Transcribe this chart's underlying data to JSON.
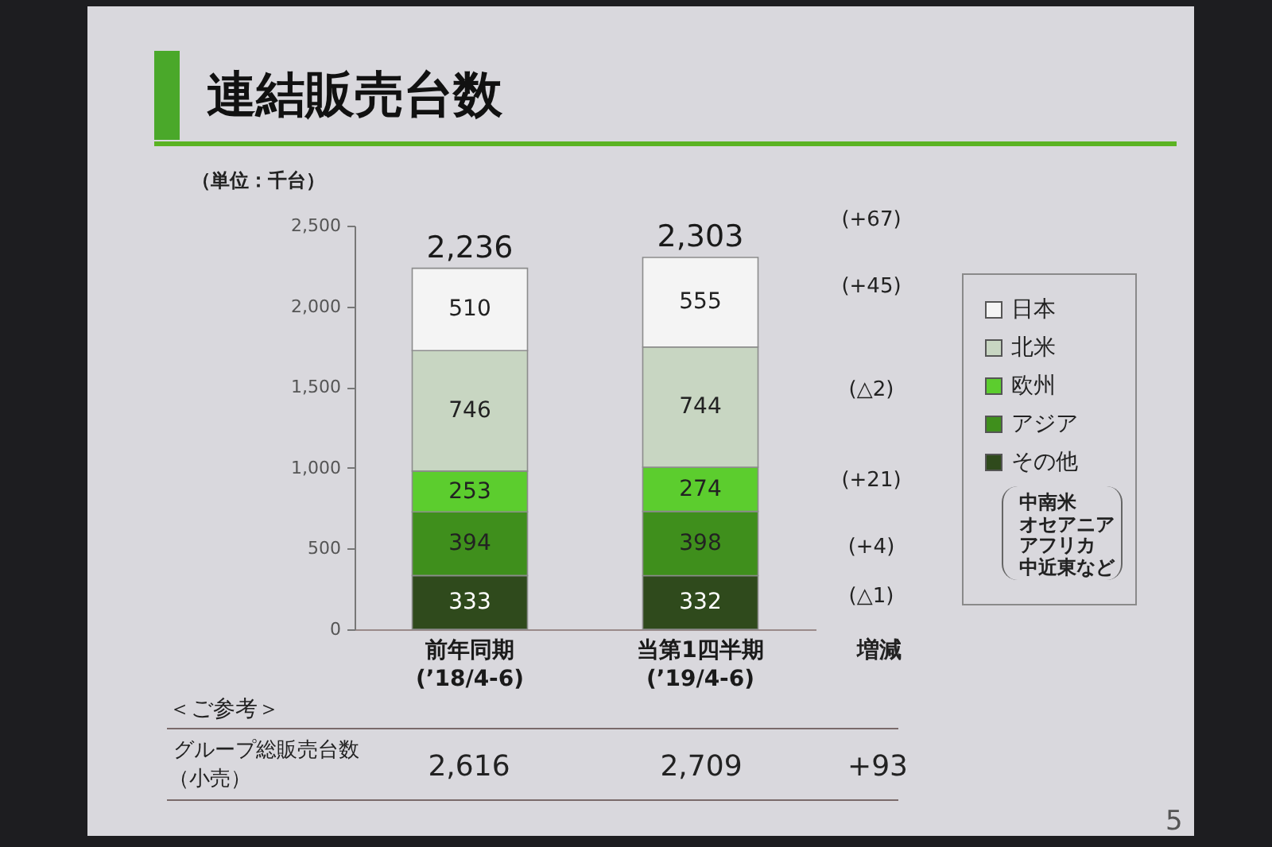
{
  "chart_data": {
    "type": "bar",
    "title": "連結販売台数",
    "ylabel": "（単位：千台）",
    "categories": [
      "前年同期\n(’18/4-6)",
      "当第1四半期\n(’19/4-6)"
    ],
    "series": [
      {
        "name": "その他",
        "color": "#2f4a1c",
        "values": [
          333,
          332
        ]
      },
      {
        "name": "アジア",
        "color": "#3f8f1c",
        "values": [
          394,
          398
        ]
      },
      {
        "name": "欧州",
        "color": "#5ccd2e",
        "values": [
          253,
          274
        ]
      },
      {
        "name": "北米",
        "color": "#c8d6c2",
        "values": [
          746,
          744
        ]
      },
      {
        "name": "日本",
        "color": "#f4f4f4",
        "values": [
          510,
          555
        ]
      }
    ],
    "stacked": true,
    "data_labels": true,
    "totals": [
      "2,236",
      "2,303"
    ],
    "ylim": [
      0,
      2500
    ],
    "yticks": [
      0,
      500,
      {
        "value": 1000,
        "label": "1,000"
      },
      {
        "value": 1500,
        "label": "1,500"
      },
      {
        "value": 2000,
        "label": "2,000"
      },
      {
        "value": 2500,
        "label": "2,500"
      }
    ],
    "legend": "right",
    "annotations": [
      "(+67)",
      "(+45)",
      "(△2)",
      "(+21)",
      "(+4)",
      "(△1)",
      "増減",
      "中南米",
      "オセアニア",
      "アフリカ",
      "中近東など",
      "＜ご参考＞",
      "グループ総販売台数",
      "（小売）",
      "2,616",
      "2,709",
      "+93",
      "5"
    ]
  }
}
